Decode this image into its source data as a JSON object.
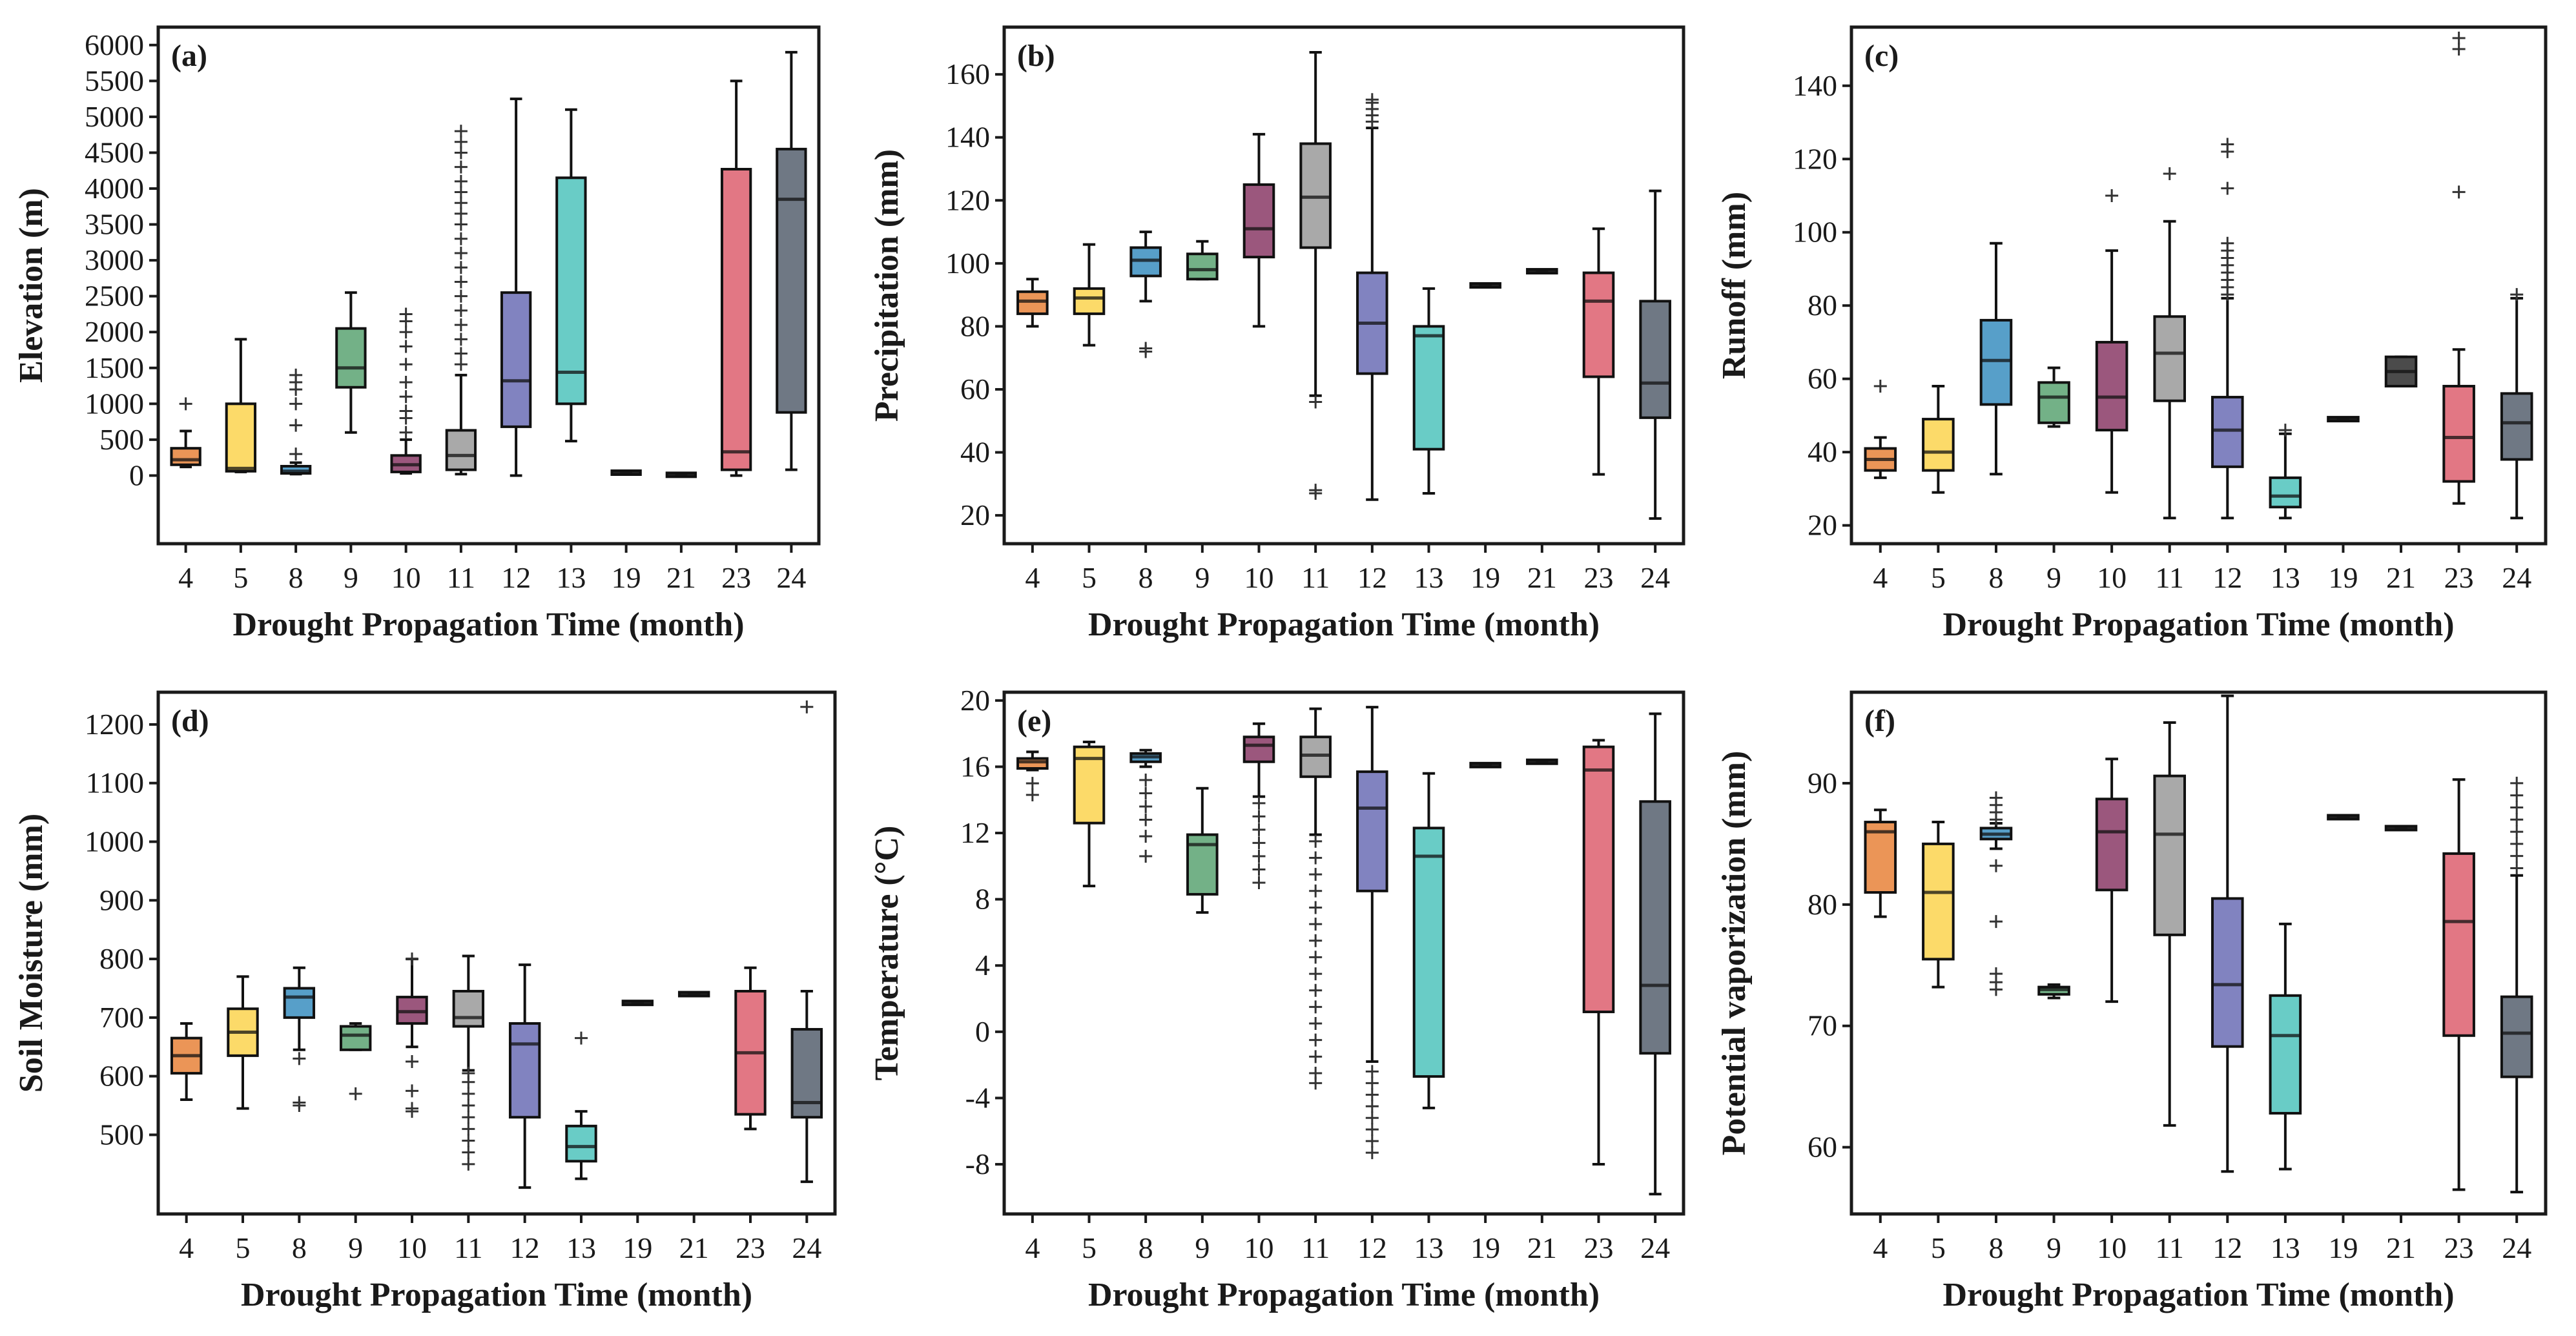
{
  "figure": {
    "xlabel": "Drought Propagation Time (month)",
    "categories": [
      "4",
      "5",
      "8",
      "9",
      "10",
      "11",
      "12",
      "13",
      "19",
      "21",
      "23",
      "24"
    ],
    "colors": [
      "#e8823a",
      "#fbd34f",
      "#3a8ebf",
      "#5aa372",
      "#8a3a66",
      "#9a9a9a",
      "#6b6db5",
      "#4fc3bc",
      "#2b2b2b",
      "#2b2b2b",
      "#dd5f6e",
      "#56606e"
    ]
  },
  "chart_data": [
    {
      "id": "a",
      "type": "box",
      "tag": "(a)",
      "ylabel": "Elevation (m)",
      "ylim": [
        -950,
        6250
      ],
      "yticks": [
        0,
        500,
        1000,
        1500,
        2000,
        2500,
        3000,
        3500,
        4000,
        4500,
        5000,
        5500,
        6000
      ],
      "boxes": [
        {
          "cat": "4",
          "min": 120,
          "q1": 150,
          "median": 220,
          "q3": 380,
          "max": 620,
          "outliers": [
            1000
          ]
        },
        {
          "cat": "5",
          "min": 50,
          "q1": 60,
          "median": 100,
          "q3": 1000,
          "max": 1900,
          "outliers": []
        },
        {
          "cat": "8",
          "min": 20,
          "q1": 30,
          "median": 60,
          "q3": 130,
          "max": 180,
          "outliers": [
            300,
            700,
            1000,
            1200,
            1300,
            1400
          ]
        },
        {
          "cat": "9",
          "min": 600,
          "q1": 1230,
          "median": 1500,
          "q3": 2050,
          "max": 2550,
          "outliers": []
        },
        {
          "cat": "10",
          "min": 30,
          "q1": 50,
          "median": 150,
          "q3": 280,
          "max": 500,
          "outliers": [
            600,
            800,
            900,
            1100,
            1300,
            1550,
            1800,
            2000,
            2150,
            2250
          ]
        },
        {
          "cat": "11",
          "min": 20,
          "q1": 80,
          "median": 280,
          "q3": 630,
          "max": 1400,
          "outliers": [
            1550,
            1700,
            1900,
            2100,
            2300,
            2500,
            2700,
            2900,
            3100,
            3300,
            3500,
            3650,
            3800,
            3950,
            4100,
            4300,
            4500,
            4650,
            4800
          ]
        },
        {
          "cat": "12",
          "min": 0,
          "q1": 680,
          "median": 1320,
          "q3": 2550,
          "max": 5250,
          "outliers": []
        },
        {
          "cat": "13",
          "min": 480,
          "q1": 1000,
          "median": 1440,
          "q3": 4150,
          "max": 5100,
          "outliers": []
        },
        {
          "cat": "19",
          "min": 40,
          "q1": 40,
          "median": 40,
          "q3": 40,
          "max": 40,
          "outliers": []
        },
        {
          "cat": "21",
          "min": 10,
          "q1": 10,
          "median": 10,
          "q3": 10,
          "max": 10,
          "outliers": []
        },
        {
          "cat": "23",
          "min": 0,
          "q1": 80,
          "median": 330,
          "q3": 4270,
          "max": 5500,
          "outliers": []
        },
        {
          "cat": "24",
          "min": 80,
          "q1": 880,
          "median": 3850,
          "q3": 4550,
          "max": 5900,
          "outliers": []
        }
      ]
    },
    {
      "id": "b",
      "type": "box",
      "tag": "(b)",
      "ylabel": "Precipitation (mm)",
      "ylim": [
        11,
        175
      ],
      "yticks": [
        20,
        40,
        60,
        80,
        100,
        120,
        140,
        160
      ],
      "boxes": [
        {
          "cat": "4",
          "min": 80,
          "q1": 84,
          "median": 88,
          "q3": 91,
          "max": 95,
          "outliers": []
        },
        {
          "cat": "5",
          "min": 74,
          "q1": 84,
          "median": 89,
          "q3": 92,
          "max": 106,
          "outliers": []
        },
        {
          "cat": "8",
          "min": 88,
          "q1": 96,
          "median": 101,
          "q3": 105,
          "max": 110,
          "outliers": [
            72,
            73
          ]
        },
        {
          "cat": "9",
          "min": 95,
          "q1": 95,
          "median": 98,
          "q3": 103,
          "max": 107,
          "outliers": []
        },
        {
          "cat": "10",
          "min": 80,
          "q1": 102,
          "median": 111,
          "q3": 125,
          "max": 141,
          "outliers": []
        },
        {
          "cat": "11",
          "min": 58,
          "q1": 105,
          "median": 121,
          "q3": 138,
          "max": 167,
          "outliers": [
            28,
            27,
            56
          ]
        },
        {
          "cat": "12",
          "min": 25,
          "q1": 65,
          "median": 81,
          "q3": 97,
          "max": 143,
          "outliers": [
            145,
            147,
            149,
            151,
            152
          ]
        },
        {
          "cat": "13",
          "min": 27,
          "q1": 41,
          "median": 77,
          "q3": 80,
          "max": 92,
          "outliers": []
        },
        {
          "cat": "19",
          "min": 93,
          "q1": 93,
          "median": 93,
          "q3": 93,
          "max": 93,
          "outliers": []
        },
        {
          "cat": "21",
          "min": 97.5,
          "q1": 97.5,
          "median": 97.5,
          "q3": 97.5,
          "max": 97.5,
          "outliers": []
        },
        {
          "cat": "23",
          "min": 33,
          "q1": 64,
          "median": 88,
          "q3": 97,
          "max": 111,
          "outliers": []
        },
        {
          "cat": "24",
          "min": 19,
          "q1": 51,
          "median": 62,
          "q3": 88,
          "max": 123,
          "outliers": []
        }
      ]
    },
    {
      "id": "c",
      "type": "box",
      "tag": "(c)",
      "ylabel": "Runoff (mm)",
      "ylim": [
        15,
        156
      ],
      "yticks": [
        20,
        40,
        60,
        80,
        100,
        120,
        140
      ],
      "boxes": [
        {
          "cat": "4",
          "min": 33,
          "q1": 35,
          "median": 38,
          "q3": 41,
          "max": 44,
          "outliers": [
            58
          ]
        },
        {
          "cat": "5",
          "min": 29,
          "q1": 35,
          "median": 40,
          "q3": 49,
          "max": 58,
          "outliers": []
        },
        {
          "cat": "8",
          "min": 34,
          "q1": 53,
          "median": 65,
          "q3": 76,
          "max": 97,
          "outliers": []
        },
        {
          "cat": "9",
          "min": 47,
          "q1": 48,
          "median": 55,
          "q3": 59,
          "max": 63,
          "outliers": []
        },
        {
          "cat": "10",
          "min": 29,
          "q1": 46,
          "median": 55,
          "q3": 70,
          "max": 95,
          "outliers": [
            110
          ]
        },
        {
          "cat": "11",
          "min": 22,
          "q1": 54,
          "median": 67,
          "q3": 77,
          "max": 103,
          "outliers": [
            116
          ]
        },
        {
          "cat": "12",
          "min": 22,
          "q1": 36,
          "median": 46,
          "q3": 55,
          "max": 82,
          "outliers": [
            83,
            85,
            87,
            89,
            91,
            93,
            95,
            97,
            112,
            122,
            124
          ]
        },
        {
          "cat": "13",
          "min": 22,
          "q1": 25,
          "median": 28,
          "q3": 33,
          "max": 45,
          "outliers": [
            46
          ]
        },
        {
          "cat": "19",
          "min": 49,
          "q1": 49,
          "median": 49,
          "q3": 49,
          "max": 49,
          "outliers": []
        },
        {
          "cat": "21",
          "min": 58,
          "q1": 58,
          "median": 62,
          "q3": 66,
          "max": 66,
          "outliers": []
        },
        {
          "cat": "23",
          "min": 26,
          "q1": 32,
          "median": 44,
          "q3": 58,
          "max": 68,
          "outliers": [
            111,
            150,
            153
          ]
        },
        {
          "cat": "24",
          "min": 22,
          "q1": 38,
          "median": 48,
          "q3": 56,
          "max": 82,
          "outliers": [
            83
          ]
        }
      ]
    },
    {
      "id": "d",
      "type": "box",
      "tag": "(d)",
      "ylabel": "Soil Moisture (mm)",
      "ylim": [
        365,
        1255
      ],
      "yticks": [
        500,
        600,
        700,
        800,
        900,
        1000,
        1100,
        1200
      ],
      "boxes": [
        {
          "cat": "4",
          "min": 560,
          "q1": 605,
          "median": 635,
          "q3": 665,
          "max": 690,
          "outliers": []
        },
        {
          "cat": "5",
          "min": 545,
          "q1": 635,
          "median": 675,
          "q3": 715,
          "max": 770,
          "outliers": []
        },
        {
          "cat": "8",
          "min": 645,
          "q1": 700,
          "median": 735,
          "q3": 750,
          "max": 785,
          "outliers": [
            550,
            555,
            630
          ]
        },
        {
          "cat": "9",
          "min": 645,
          "q1": 645,
          "median": 670,
          "q3": 685,
          "max": 690,
          "outliers": [
            570
          ]
        },
        {
          "cat": "10",
          "min": 650,
          "q1": 690,
          "median": 710,
          "q3": 735,
          "max": 800,
          "outliers": [
            540,
            545,
            575,
            625,
            800
          ]
        },
        {
          "cat": "11",
          "min": 610,
          "q1": 685,
          "median": 700,
          "q3": 745,
          "max": 805,
          "outliers": [
            450,
            470,
            490,
            510,
            530,
            550,
            570,
            590,
            605
          ]
        },
        {
          "cat": "12",
          "min": 410,
          "q1": 530,
          "median": 655,
          "q3": 690,
          "max": 790,
          "outliers": []
        },
        {
          "cat": "13",
          "min": 425,
          "q1": 455,
          "median": 480,
          "q3": 515,
          "max": 540,
          "outliers": [
            665
          ]
        },
        {
          "cat": "19",
          "min": 725,
          "q1": 725,
          "median": 725,
          "q3": 725,
          "max": 725,
          "outliers": []
        },
        {
          "cat": "21",
          "min": 740,
          "q1": 740,
          "median": 740,
          "q3": 740,
          "max": 740,
          "outliers": []
        },
        {
          "cat": "23",
          "min": 510,
          "q1": 535,
          "median": 640,
          "q3": 745,
          "max": 785,
          "outliers": []
        },
        {
          "cat": "24",
          "min": 420,
          "q1": 530,
          "median": 555,
          "q3": 680,
          "max": 745,
          "outliers": [
            1230
          ]
        }
      ]
    },
    {
      "id": "e",
      "type": "box",
      "tag": "(e)",
      "ylabel": "Temperature (°C)",
      "ylim": [
        -11,
        20.5
      ],
      "yticks": [
        -8,
        -4,
        0,
        4,
        8,
        12,
        16,
        20
      ],
      "ytick_labels": [
        "-8",
        "-4",
        "0",
        "4",
        "8",
        "12",
        "16",
        "20"
      ],
      "boxes": [
        {
          "cat": "4",
          "min": 15.8,
          "q1": 15.9,
          "median": 16.3,
          "q3": 16.5,
          "max": 16.9,
          "outliers": [
            14.3,
            15.0
          ]
        },
        {
          "cat": "5",
          "min": 8.8,
          "q1": 12.6,
          "median": 16.5,
          "q3": 17.2,
          "max": 17.5,
          "outliers": []
        },
        {
          "cat": "8",
          "min": 16.0,
          "q1": 16.3,
          "median": 16.6,
          "q3": 16.8,
          "max": 17.0,
          "outliers": [
            10.6,
            11.8,
            12.8,
            13.6,
            14.4,
            15.2
          ]
        },
        {
          "cat": "9",
          "min": 7.2,
          "q1": 8.3,
          "median": 11.3,
          "q3": 11.9,
          "max": 14.7,
          "outliers": []
        },
        {
          "cat": "10",
          "min": 14.2,
          "q1": 16.3,
          "median": 17.3,
          "q3": 17.8,
          "max": 18.6,
          "outliers": [
            9.0,
            9.8,
            10.6,
            11.4,
            12.2,
            13.0,
            13.8
          ]
        },
        {
          "cat": "11",
          "min": 11.9,
          "q1": 15.4,
          "median": 16.7,
          "q3": 17.8,
          "max": 19.5,
          "outliers": [
            -3.1,
            -2.5,
            -1.5,
            -0.5,
            0.5,
            1.5,
            2.5,
            3.5,
            4.5,
            5.5,
            6.5,
            7.5,
            8.5,
            9.5,
            10.5,
            11.5
          ]
        },
        {
          "cat": "12",
          "min": -1.8,
          "q1": 8.5,
          "median": 13.5,
          "q3": 15.7,
          "max": 19.6,
          "outliers": [
            -7.3,
            -6.6,
            -5.9,
            -5.2,
            -4.5,
            -3.8,
            -3.1,
            -2.4
          ]
        },
        {
          "cat": "13",
          "min": -4.6,
          "q1": -2.7,
          "median": 10.6,
          "q3": 12.3,
          "max": 15.6,
          "outliers": []
        },
        {
          "cat": "19",
          "min": 16.1,
          "q1": 16.1,
          "median": 16.1,
          "q3": 16.1,
          "max": 16.1,
          "outliers": []
        },
        {
          "cat": "21",
          "min": 16.3,
          "q1": 16.3,
          "median": 16.3,
          "q3": 16.3,
          "max": 16.3,
          "outliers": []
        },
        {
          "cat": "23",
          "min": -8.0,
          "q1": 1.2,
          "median": 15.8,
          "q3": 17.2,
          "max": 17.6,
          "outliers": []
        },
        {
          "cat": "24",
          "min": -9.8,
          "q1": -1.3,
          "median": 2.8,
          "q3": 13.9,
          "max": 19.2,
          "outliers": []
        }
      ]
    },
    {
      "id": "f",
      "type": "box",
      "tag": "(f)",
      "ylabel": "Potential vaporization (mm)",
      "ylim": [
        54.5,
        97.5
      ],
      "yticks": [
        60,
        70,
        80,
        90
      ],
      "boxes": [
        {
          "cat": "4",
          "min": 79,
          "q1": 81,
          "median": 86,
          "q3": 86.8,
          "max": 87.8,
          "outliers": []
        },
        {
          "cat": "5",
          "min": 73.2,
          "q1": 75.5,
          "median": 81,
          "q3": 85,
          "max": 86.8,
          "outliers": []
        },
        {
          "cat": "8",
          "min": 84.6,
          "q1": 85.4,
          "median": 85.8,
          "q3": 86.3,
          "max": 86.7,
          "outliers": [
            73,
            73.6,
            74.3,
            78.6,
            83.2,
            87,
            87.6,
            88.2,
            88.8
          ]
        },
        {
          "cat": "9",
          "min": 72.3,
          "q1": 72.6,
          "median": 73,
          "q3": 73.2,
          "max": 73.4,
          "outliers": []
        },
        {
          "cat": "10",
          "min": 72,
          "q1": 81.2,
          "median": 86,
          "q3": 88.7,
          "max": 92
        },
        {
          "cat": "11",
          "min": 61.8,
          "q1": 77.5,
          "median": 85.8,
          "q3": 90.6,
          "max": 95,
          "outliers": []
        },
        {
          "cat": "12",
          "min": 58,
          "q1": 68.3,
          "median": 73.4,
          "q3": 80.5,
          "max": 97.2,
          "outliers": []
        },
        {
          "cat": "13",
          "min": 58.2,
          "q1": 62.8,
          "median": 69.2,
          "q3": 72.5,
          "max": 78.4,
          "outliers": []
        },
        {
          "cat": "19",
          "min": 87.2,
          "q1": 87.2,
          "median": 87.2,
          "q3": 87.2,
          "max": 87.2,
          "outliers": []
        },
        {
          "cat": "21",
          "min": 86.3,
          "q1": 86.3,
          "median": 86.3,
          "q3": 86.3,
          "max": 86.3,
          "outliers": []
        },
        {
          "cat": "23",
          "min": 56.5,
          "q1": 69.2,
          "median": 78.6,
          "q3": 84.2,
          "max": 90.3,
          "outliers": []
        },
        {
          "cat": "24",
          "min": 56.3,
          "q1": 65.8,
          "median": 69.4,
          "q3": 72.4,
          "max": 82.4,
          "outliers": [
            83,
            84,
            85,
            86,
            87,
            88,
            89,
            90
          ]
        }
      ]
    }
  ]
}
